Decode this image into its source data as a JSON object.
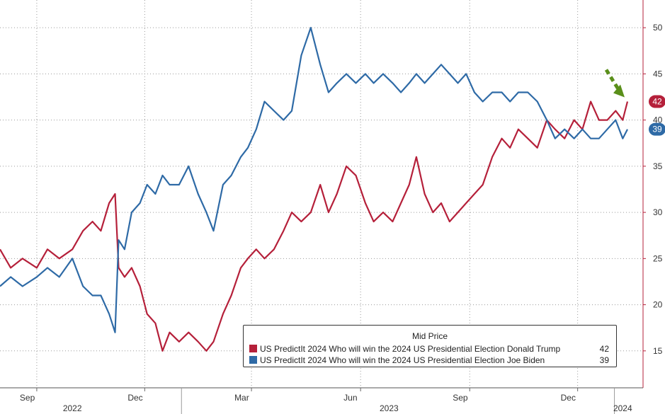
{
  "chart_data": {
    "type": "line",
    "y_axis": {
      "ticks": [
        15,
        20,
        25,
        30,
        35,
        40,
        45,
        50
      ],
      "range": [
        11,
        53
      ],
      "position": "right",
      "grid": true
    },
    "x_axis": {
      "month_labels": [
        "Sep",
        "Dec",
        "Mar",
        "Jun",
        "Sep",
        "Dec"
      ],
      "month_ticks": [
        "2022-09",
        "2022-12",
        "2023-03",
        "2023-06",
        "2023-09",
        "2023-12"
      ],
      "year_labels": [
        "2022",
        "2023",
        "2024"
      ],
      "range": [
        "2022-08-01",
        "2024-01-12"
      ]
    },
    "legend": {
      "title": "Mid Price",
      "placement": "bottom-right",
      "entries": [
        {
          "label": "US PredictIt 2024 Who will win the 2024 US Presidential Election Donald Trump",
          "value": "42",
          "color": "#b5203a"
        },
        {
          "label": "US PredictIt 2024 Who will win the 2024 US Presidential Election Joe Biden",
          "value": "39",
          "color": "#2e6aa6"
        }
      ]
    },
    "end_labels": [
      "42",
      "39"
    ],
    "series": [
      {
        "name": "US PredictIt 2024 Who will win the 2024 US Presidential Election Donald Trump",
        "color": "#b5203a",
        "points": [
          [
            "2022-08-01",
            26
          ],
          [
            "2022-08-10",
            24
          ],
          [
            "2022-08-20",
            25
          ],
          [
            "2022-09-01",
            24
          ],
          [
            "2022-09-10",
            26
          ],
          [
            "2022-09-20",
            25
          ],
          [
            "2022-10-01",
            26
          ],
          [
            "2022-10-10",
            28
          ],
          [
            "2022-10-18",
            29
          ],
          [
            "2022-10-25",
            28
          ],
          [
            "2022-11-01",
            31
          ],
          [
            "2022-11-06",
            32
          ],
          [
            "2022-11-09",
            24
          ],
          [
            "2022-11-14",
            23
          ],
          [
            "2022-11-20",
            24
          ],
          [
            "2022-11-27",
            22
          ],
          [
            "2022-12-03",
            19
          ],
          [
            "2022-12-10",
            18
          ],
          [
            "2022-12-16",
            15
          ],
          [
            "2022-12-22",
            17
          ],
          [
            "2022-12-30",
            16
          ],
          [
            "2023-01-07",
            17
          ],
          [
            "2023-01-15",
            16
          ],
          [
            "2023-01-22",
            15
          ],
          [
            "2023-01-28",
            16
          ],
          [
            "2023-02-05",
            19
          ],
          [
            "2023-02-12",
            21
          ],
          [
            "2023-02-20",
            24
          ],
          [
            "2023-02-26",
            25
          ],
          [
            "2023-03-05",
            26
          ],
          [
            "2023-03-12",
            25
          ],
          [
            "2023-03-20",
            26
          ],
          [
            "2023-03-28",
            28
          ],
          [
            "2023-04-04",
            30
          ],
          [
            "2023-04-12",
            29
          ],
          [
            "2023-04-20",
            30
          ],
          [
            "2023-04-28",
            33
          ],
          [
            "2023-05-05",
            30
          ],
          [
            "2023-05-12",
            32
          ],
          [
            "2023-05-20",
            35
          ],
          [
            "2023-05-28",
            34
          ],
          [
            "2023-06-05",
            31
          ],
          [
            "2023-06-12",
            29
          ],
          [
            "2023-06-20",
            30
          ],
          [
            "2023-06-28",
            29
          ],
          [
            "2023-07-05",
            31
          ],
          [
            "2023-07-12",
            33
          ],
          [
            "2023-07-18",
            36
          ],
          [
            "2023-07-25",
            32
          ],
          [
            "2023-08-01",
            30
          ],
          [
            "2023-08-08",
            31
          ],
          [
            "2023-08-15",
            29
          ],
          [
            "2023-08-22",
            30
          ],
          [
            "2023-08-29",
            31
          ],
          [
            "2023-09-05",
            32
          ],
          [
            "2023-09-12",
            33
          ],
          [
            "2023-09-20",
            36
          ],
          [
            "2023-09-28",
            38
          ],
          [
            "2023-10-05",
            37
          ],
          [
            "2023-10-12",
            39
          ],
          [
            "2023-10-20",
            38
          ],
          [
            "2023-10-28",
            37
          ],
          [
            "2023-11-05",
            40
          ],
          [
            "2023-11-12",
            39
          ],
          [
            "2023-11-20",
            38
          ],
          [
            "2023-11-28",
            40
          ],
          [
            "2023-12-05",
            39
          ],
          [
            "2023-12-12",
            42
          ],
          [
            "2023-12-19",
            40
          ],
          [
            "2023-12-26",
            40
          ],
          [
            "2024-01-02",
            41
          ],
          [
            "2024-01-08",
            40
          ],
          [
            "2024-01-12",
            42
          ]
        ]
      },
      {
        "name": "US PredictIt 2024 Who will win the 2024 US Presidential Election Joe Biden",
        "color": "#2e6aa6",
        "points": [
          [
            "2022-08-01",
            22
          ],
          [
            "2022-08-10",
            23
          ],
          [
            "2022-08-20",
            22
          ],
          [
            "2022-09-01",
            23
          ],
          [
            "2022-09-10",
            24
          ],
          [
            "2022-09-20",
            23
          ],
          [
            "2022-10-01",
            25
          ],
          [
            "2022-10-10",
            22
          ],
          [
            "2022-10-18",
            21
          ],
          [
            "2022-10-25",
            21
          ],
          [
            "2022-11-01",
            19
          ],
          [
            "2022-11-06",
            17
          ],
          [
            "2022-11-09",
            27
          ],
          [
            "2022-11-14",
            26
          ],
          [
            "2022-11-20",
            30
          ],
          [
            "2022-11-27",
            31
          ],
          [
            "2022-12-03",
            33
          ],
          [
            "2022-12-10",
            32
          ],
          [
            "2022-12-16",
            34
          ],
          [
            "2022-12-22",
            33
          ],
          [
            "2022-12-30",
            33
          ],
          [
            "2023-01-07",
            35
          ],
          [
            "2023-01-15",
            32
          ],
          [
            "2023-01-22",
            30
          ],
          [
            "2023-01-28",
            28
          ],
          [
            "2023-02-05",
            33
          ],
          [
            "2023-02-12",
            34
          ],
          [
            "2023-02-20",
            36
          ],
          [
            "2023-02-26",
            37
          ],
          [
            "2023-03-05",
            39
          ],
          [
            "2023-03-12",
            42
          ],
          [
            "2023-03-20",
            41
          ],
          [
            "2023-03-28",
            40
          ],
          [
            "2023-04-04",
            41
          ],
          [
            "2023-04-12",
            47
          ],
          [
            "2023-04-20",
            50
          ],
          [
            "2023-04-28",
            46
          ],
          [
            "2023-05-05",
            43
          ],
          [
            "2023-05-12",
            44
          ],
          [
            "2023-05-20",
            45
          ],
          [
            "2023-05-28",
            44
          ],
          [
            "2023-06-05",
            45
          ],
          [
            "2023-06-12",
            44
          ],
          [
            "2023-06-20",
            45
          ],
          [
            "2023-06-28",
            44
          ],
          [
            "2023-07-05",
            43
          ],
          [
            "2023-07-12",
            44
          ],
          [
            "2023-07-18",
            45
          ],
          [
            "2023-07-25",
            44
          ],
          [
            "2023-08-01",
            45
          ],
          [
            "2023-08-08",
            46
          ],
          [
            "2023-08-15",
            45
          ],
          [
            "2023-08-22",
            44
          ],
          [
            "2023-08-29",
            45
          ],
          [
            "2023-09-05",
            43
          ],
          [
            "2023-09-12",
            42
          ],
          [
            "2023-09-20",
            43
          ],
          [
            "2023-09-28",
            43
          ],
          [
            "2023-10-05",
            42
          ],
          [
            "2023-10-12",
            43
          ],
          [
            "2023-10-20",
            43
          ],
          [
            "2023-10-28",
            42
          ],
          [
            "2023-11-05",
            40
          ],
          [
            "2023-11-12",
            38
          ],
          [
            "2023-11-20",
            39
          ],
          [
            "2023-11-28",
            38
          ],
          [
            "2023-12-05",
            39
          ],
          [
            "2023-12-12",
            38
          ],
          [
            "2023-12-19",
            38
          ],
          [
            "2023-12-26",
            39
          ],
          [
            "2024-01-02",
            40
          ],
          [
            "2024-01-08",
            38
          ],
          [
            "2024-01-12",
            39
          ]
        ]
      }
    ]
  }
}
